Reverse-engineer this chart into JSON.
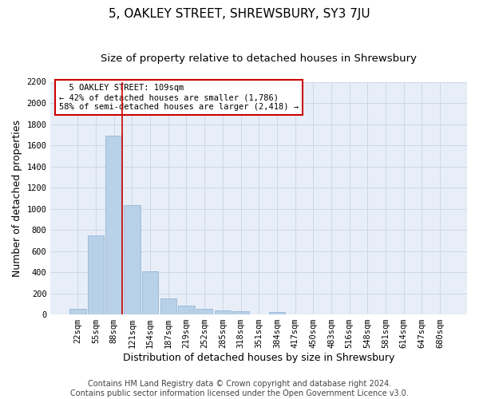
{
  "title": "5, OAKLEY STREET, SHREWSBURY, SY3 7JU",
  "subtitle": "Size of property relative to detached houses in Shrewsbury",
  "xlabel": "Distribution of detached houses by size in Shrewsbury",
  "ylabel": "Number of detached properties",
  "footer_line1": "Contains HM Land Registry data © Crown copyright and database right 2024.",
  "footer_line2": "Contains public sector information licensed under the Open Government Licence v3.0.",
  "categories": [
    "22sqm",
    "55sqm",
    "88sqm",
    "121sqm",
    "154sqm",
    "187sqm",
    "219sqm",
    "252sqm",
    "285sqm",
    "318sqm",
    "351sqm",
    "384sqm",
    "417sqm",
    "450sqm",
    "483sqm",
    "516sqm",
    "548sqm",
    "581sqm",
    "614sqm",
    "647sqm",
    "680sqm"
  ],
  "values": [
    55,
    745,
    1690,
    1035,
    405,
    155,
    85,
    50,
    40,
    30,
    0,
    20,
    0,
    0,
    0,
    0,
    0,
    0,
    0,
    0,
    0
  ],
  "bar_color": "#b8d0e8",
  "bar_edge_color": "#8ab0d0",
  "grid_color": "#ccd8e8",
  "background_color": "#e8eef8",
  "annotation_text": "  5 OAKLEY STREET: 109sqm\n← 42% of detached houses are smaller (1,786)\n58% of semi-detached houses are larger (2,418) →",
  "annotation_box_color": "#ffffff",
  "annotation_box_edge_color": "#cc0000",
  "marker_bin_index": 2,
  "ylim": [
    0,
    2200
  ],
  "yticks": [
    0,
    200,
    400,
    600,
    800,
    1000,
    1200,
    1400,
    1600,
    1800,
    2000,
    2200
  ],
  "title_fontsize": 11,
  "subtitle_fontsize": 9.5,
  "xlabel_fontsize": 9,
  "ylabel_fontsize": 9,
  "tick_fontsize": 7.5,
  "annotation_fontsize": 7.5,
  "footer_fontsize": 7
}
